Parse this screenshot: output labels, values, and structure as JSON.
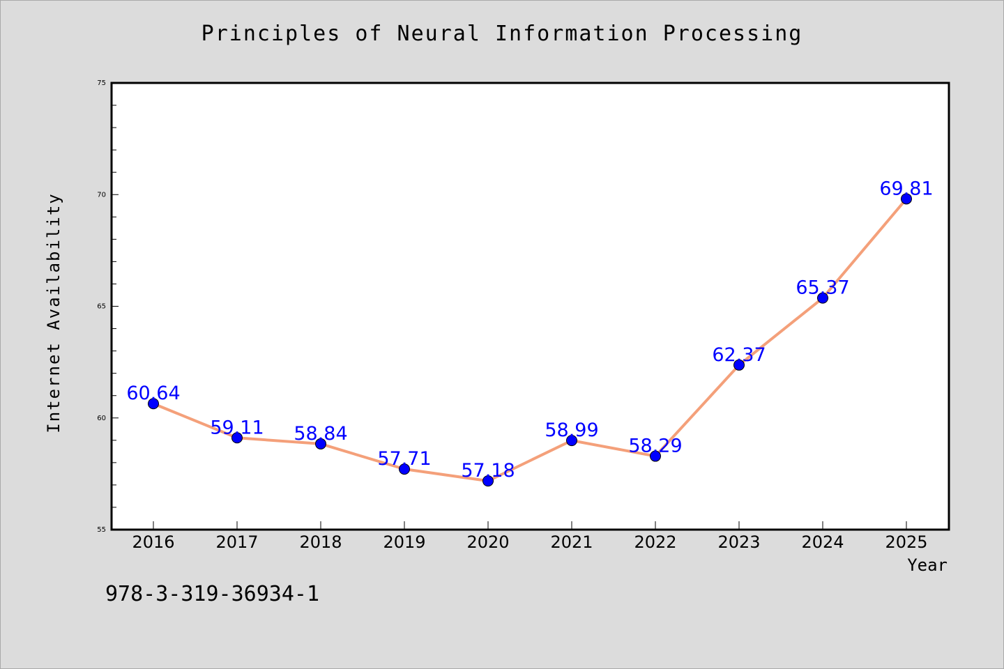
{
  "chart_data": {
    "type": "line",
    "title": "Principles of Neural Information Processing",
    "xlabel": "Year",
    "ylabel": "Internet Availability",
    "categories": [
      "2016",
      "2017",
      "2018",
      "2019",
      "2020",
      "2021",
      "2022",
      "2023",
      "2024",
      "2025"
    ],
    "series": [
      {
        "values": [
          60.64,
          59.11,
          58.84,
          57.71,
          57.18,
          58.99,
          58.29,
          62.37,
          65.37,
          69.81
        ],
        "data_labels": [
          "60.64",
          "59.11",
          "58.84",
          "57.71",
          "57.18",
          "58.99",
          "58.29",
          "62.37",
          "65.37",
          "69.81"
        ],
        "line_color": "#f4a07a",
        "marker_color": "#0000ff",
        "label_color": "#0000ff"
      }
    ],
    "ylim": [
      55,
      75
    ],
    "yticks": [
      "55",
      "60",
      "65",
      "70",
      "75"
    ],
    "grid": false,
    "legend": "none"
  },
  "footnote": "978-3-319-36934-1"
}
